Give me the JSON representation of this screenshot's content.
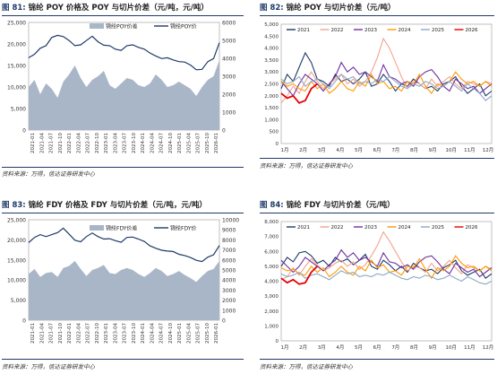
{
  "charts": [
    {
      "num": "图 81:",
      "title": "锦纶 POY 价格及 POY 与切片价差（元/吨，元/吨）",
      "source": "资料来源：万得，信达证券研发中心"
    },
    {
      "num": "图 82:",
      "title": "锦纶 POY 与切片价差（元/吨）",
      "source": "资料来源：万得，信达证券研发中心"
    },
    {
      "num": "图 83:",
      "title": "锦纶 FDY 价格及 FDY 与切片价差（元/吨，元/吨）",
      "source": "资料来源：万得，信达证券研发中心"
    },
    {
      "num": "图 84:",
      "title": "锦纶 FDY 与切片价差（元/吨）",
      "source": "资料来源：万得，信达证券研发中心"
    }
  ],
  "chart_data": [
    {
      "type": "area",
      "legend": [
        "锦纶POY价差",
        "锦纶POY价"
      ],
      "left_ticks": [
        "25,000",
        "20,000",
        "15,000",
        "10,000",
        "5,000",
        "0"
      ],
      "right_ticks": [
        "6000",
        "5000",
        "4000",
        "3000",
        "2000",
        "1000",
        "0"
      ],
      "ylim_left": [
        0,
        25000
      ],
      "ylim_right": [
        0,
        6000
      ],
      "x_labels": [
        "2021-01",
        "2021-04",
        "2021-07",
        "2021-10",
        "2022-01",
        "2022-04",
        "2022-07",
        "2022-10",
        "2023-01",
        "2023-04",
        "2023-07",
        "2023-10",
        "2024-01",
        "2024-04",
        "2024-07",
        "2024-10",
        "2025-01",
        "2025-04",
        "2025-07",
        "2025-10",
        "2026-01"
      ],
      "price": [
        16800,
        17600,
        19000,
        19600,
        21500,
        22000,
        21700,
        20800,
        19600,
        19800,
        20800,
        21800,
        20500,
        19700,
        19600,
        18800,
        18500,
        19600,
        19800,
        19200,
        18800,
        17900,
        17200,
        16600,
        16800,
        16300,
        15900,
        15800,
        15100,
        14000,
        14100,
        15900,
        16600,
        20300
      ],
      "spread": [
        2400,
        2800,
        2000,
        2600,
        2300,
        1800,
        2700,
        3100,
        3600,
        2900,
        2400,
        2800,
        3000,
        3300,
        2500,
        2300,
        2600,
        2900,
        2800,
        2500,
        2400,
        2600,
        3100,
        2800,
        2400,
        2500,
        2700,
        2500,
        2300,
        1900,
        2400,
        2800,
        3000,
        3900
      ]
    },
    {
      "type": "line",
      "series_names": [
        "2021",
        "2022",
        "2023",
        "2024",
        "2025",
        "2026"
      ],
      "series_colors": [
        "#1f3a68",
        "#f4a28c",
        "#7030a0",
        "#ff9900",
        "#8fa8c8",
        "#e60000"
      ],
      "y_ticks": [
        "5,000",
        "4,500",
        "4,000",
        "3,500",
        "3,000",
        "2,500",
        "2,000",
        "1,500",
        "1,000",
        "500",
        "0"
      ],
      "ylim": [
        0,
        5000
      ],
      "x_labels": [
        "1月",
        "2月",
        "3月",
        "4月",
        "5月",
        "6月",
        "7月",
        "8月",
        "9月",
        "10月",
        "11月",
        "12月"
      ],
      "series": [
        {
          "values": [
            2300,
            2900,
            2600,
            3200,
            3800,
            3400,
            2700,
            2600,
            2400,
            2900,
            2600,
            2700,
            2500,
            2700,
            3000,
            2400,
            2500,
            2900,
            2600,
            2200,
            2500,
            2400,
            2700,
            2500,
            2300,
            2400,
            2200,
            2500,
            2600,
            2800,
            2400,
            2100,
            2300,
            2500,
            2000,
            2200
          ]
        },
        {
          "values": [
            1700,
            2000,
            2400,
            2100,
            2600,
            3000,
            2600,
            2300,
            2500,
            2700,
            2900,
            2500,
            2700,
            2400,
            2600,
            3000,
            3600,
            4400,
            4000,
            3400,
            2800,
            2300,
            2600,
            2500,
            2300,
            2700,
            2400,
            2600,
            2800,
            2500,
            2300,
            2600,
            2500,
            2400,
            2600,
            2500
          ]
        },
        {
          "values": [
            2600,
            2300,
            2000,
            2500,
            2900,
            2700,
            2500,
            2200,
            2500,
            2800,
            3400,
            3000,
            3200,
            2900,
            3000,
            2800,
            2600,
            3300,
            2800,
            2700,
            2500,
            2600,
            2400,
            2800,
            3000,
            3100,
            2800,
            2400,
            2200,
            2700,
            2500,
            2300,
            2400,
            2100,
            2300,
            2500
          ]
        },
        {
          "values": [
            2600,
            2400,
            2500,
            2300,
            2200,
            2600,
            2300,
            2500,
            2100,
            2300,
            2600,
            2300,
            2200,
            2600,
            2400,
            2900,
            2500,
            2600,
            2300,
            2400,
            2200,
            2600,
            2500,
            2900,
            2400,
            2100,
            2500,
            2400,
            2600,
            3000,
            2700,
            2500,
            2600,
            2400,
            2600,
            2400
          ]
        },
        {
          "values": [
            2700,
            2500,
            2600,
            2800,
            2400,
            2600,
            2700,
            2500,
            2300,
            2600,
            2900,
            2700,
            2800,
            2500,
            2600,
            2500,
            2700,
            2600,
            2800,
            2600,
            2400,
            2300,
            2500,
            2400,
            2600,
            2500,
            2300,
            2400,
            2600,
            2400,
            2200,
            2500,
            2300,
            2100,
            1800,
            2000
          ]
        },
        {
          "values": [
            2100,
            1900,
            2000,
            1700,
            1800,
            2300,
            2500
          ]
        }
      ]
    },
    {
      "type": "area",
      "legend": [
        "锦纶FDY价差",
        "锦纶FDY价"
      ],
      "left_ticks": [
        "25,000",
        "20,000",
        "15,000",
        "10,000",
        "5,000",
        "0"
      ],
      "right_ticks": [
        "10000",
        "9000",
        "8000",
        "7000",
        "6000",
        "5000",
        "4000",
        "3000",
        "2000",
        "1000",
        "0"
      ],
      "ylim_left": [
        0,
        25000
      ],
      "ylim_right": [
        0,
        10000
      ],
      "x_labels": [
        "2021-01",
        "2021-04",
        "2021-07",
        "2021-10",
        "2022-01",
        "2022-04",
        "2022-07",
        "2022-10",
        "2023-01",
        "2023-04",
        "2023-07",
        "2023-10",
        "2024-01",
        "2024-04",
        "2024-07",
        "2024-10",
        "2025-01",
        "2025-04",
        "2025-07",
        "2025-10",
        "2026-01"
      ],
      "price": [
        19300,
        20600,
        21300,
        20800,
        21300,
        21800,
        22900,
        21400,
        19900,
        19500,
        20800,
        21700,
        20800,
        20200,
        20300,
        19800,
        19400,
        20600,
        20700,
        20200,
        19600,
        18500,
        17900,
        17400,
        17200,
        17100,
        16400,
        16100,
        15600,
        14900,
        14600,
        15700,
        16300,
        18600
      ],
      "spread": [
        4600,
        5100,
        4300,
        4700,
        4800,
        4300,
        5200,
        5400,
        5900,
        5100,
        4400,
        5000,
        5200,
        5500,
        4700,
        4600,
        5000,
        5200,
        5000,
        4600,
        4300,
        4700,
        5200,
        4900,
        4400,
        4600,
        4900,
        4500,
        4200,
        3800,
        4400,
        4900,
        5100,
        5900
      ]
    },
    {
      "type": "line",
      "series_names": [
        "2021",
        "2022",
        "2023",
        "2024",
        "2025",
        "2026"
      ],
      "series_colors": [
        "#1f3a68",
        "#f4a28c",
        "#7030a0",
        "#ff9900",
        "#8fa8c8",
        "#e60000"
      ],
      "y_ticks": [
        "8,000",
        "7,000",
        "6,000",
        "5,000",
        "4,000",
        "3,000",
        "2,000",
        "1,000",
        "0"
      ],
      "ylim": [
        0,
        8000
      ],
      "x_labels": [
        "1月",
        "2月",
        "3月",
        "4月",
        "5月",
        "6月",
        "7月",
        "8月",
        "9月",
        "10月",
        "11月",
        "12月"
      ],
      "series": [
        {
          "values": [
            5000,
            5600,
            5300,
            5900,
            6000,
            5700,
            5200,
            5400,
            5000,
            5600,
            5300,
            5500,
            5100,
            5400,
            5800,
            5000,
            4800,
            5400,
            5100,
            4700,
            5000,
            4600,
            5200,
            4900,
            4700,
            4800,
            4500,
            4900,
            5100,
            5400,
            4700,
            4400,
            4600,
            4800,
            4200,
            4500
          ]
        },
        {
          "values": [
            4100,
            4300,
            4900,
            4400,
            5000,
            5500,
            5100,
            4700,
            4900,
            5200,
            5400,
            5000,
            5300,
            4800,
            5100,
            5700,
            6400,
            7300,
            6700,
            6000,
            5300,
            4700,
            5000,
            4900,
            4600,
            5200,
            4700,
            5000,
            5400,
            4900,
            4500,
            5100,
            4900,
            4700,
            5000,
            4800
          ]
        },
        {
          "values": [
            5400,
            5000,
            4600,
            5000,
            5600,
            5300,
            5000,
            4700,
            5100,
            5400,
            6100,
            5600,
            5900,
            5400,
            5600,
            5300,
            5000,
            5900,
            5300,
            5200,
            4900,
            5100,
            4800,
            5300,
            5600,
            5700,
            5300,
            4800,
            4500,
            5200,
            4900,
            4600,
            4800,
            4300,
            4600,
            4900
          ]
        },
        {
          "values": [
            4900,
            4700,
            4800,
            4500,
            4400,
            5000,
            4600,
            4900,
            4300,
            4600,
            5000,
            4600,
            4400,
            5000,
            4700,
            5400,
            4900,
            5100,
            4600,
            4700,
            4400,
            5000,
            4900,
            5500,
            4800,
            4200,
            4900,
            4700,
            5000,
            5700,
            5200,
            4900,
            5000,
            4700,
            5000,
            4700
          ]
        },
        {
          "values": [
            4500,
            4300,
            4400,
            4600,
            4200,
            4400,
            4500,
            4300,
            4100,
            4400,
            4700,
            4500,
            4600,
            4300,
            4400,
            4300,
            4500,
            4400,
            4600,
            4400,
            4200,
            4100,
            4300,
            4200,
            4400,
            4300,
            4100,
            4200,
            4400,
            4200,
            4000,
            4300,
            4100,
            3900,
            3800,
            4000
          ]
        },
        {
          "values": [
            4200,
            3900,
            4100,
            3800,
            3900,
            4600,
            5000
          ]
        }
      ]
    }
  ]
}
